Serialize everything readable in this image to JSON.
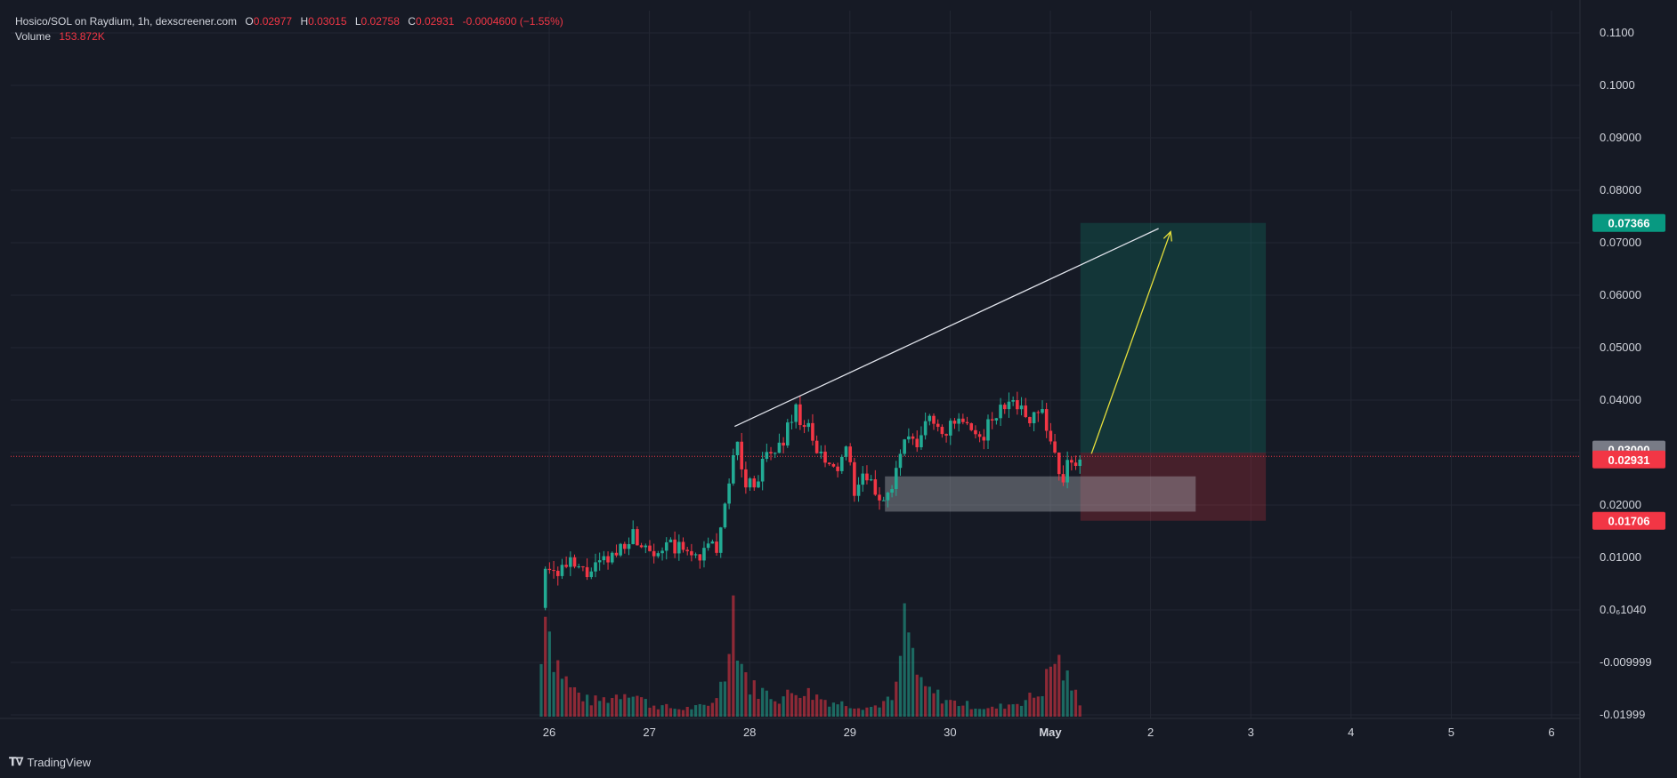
{
  "legend": {
    "symbol": "Hosico/SOL on Raydium, 1h, dexscreener.com",
    "o_label": "O",
    "o_value": "0.02977",
    "h_label": "H",
    "h_value": "0.03015",
    "l_label": "L",
    "l_value": "0.02758",
    "c_label": "C",
    "c_value": "0.02931",
    "change": "-0.0004600 (−1.55%)",
    "volume_label": "Volume",
    "volume_value": "153.872K"
  },
  "brand": {
    "name": "TradingView",
    "icon": "tradingview-logo-icon"
  },
  "colors": {
    "background": "#161a25",
    "grid": "#232733",
    "text": "#d1d4dc",
    "up": "#22ab94",
    "down": "#f23645",
    "target": "#089981",
    "stop": "#f23645",
    "entry_label": "#787b86",
    "zone": "#b2b5be",
    "arrow": "#e6df3b",
    "trendline": "#e0e3eb"
  },
  "chart_data": {
    "type": "candlestick",
    "timeframe": "1h",
    "x_ticks": [
      "26",
      "27",
      "28",
      "29",
      "30",
      "May",
      "2",
      "3",
      "4",
      "5",
      "6"
    ],
    "y_ticks": [
      "0.1100",
      "0.1000",
      "0.09000",
      "0.08000",
      "0.07000",
      "0.06000",
      "0.05000",
      "0.04000",
      "0.03000",
      "0.02000",
      "0.01000",
      "0.0₆1040",
      "-0.009999",
      "-0.01999"
    ],
    "y_range": [
      -0.0205,
      0.114
    ],
    "last_price": 0.02931,
    "price_labels": {
      "target": "0.07366",
      "entry": "0.03000",
      "last": "0.02931",
      "stop": "0.01706"
    },
    "position": {
      "entry": 0.03,
      "target": 0.07366,
      "stop": 0.01706,
      "start_day": 31.3,
      "end_day": 33.15
    },
    "demand_zone": {
      "top": 0.0255,
      "bottom": 0.0188,
      "start_day": 29.35,
      "end_day": 32.45
    },
    "trendline": {
      "from": [
        27.85,
        0.035
      ],
      "to": [
        32.08,
        0.0726
      ]
    },
    "projection_arrow": {
      "from": [
        31.41,
        0.0298
      ],
      "to": [
        32.2,
        0.072
      ]
    },
    "price_path": [
      [
        25.92,
        0.0005
      ],
      [
        25.94,
        0.01
      ],
      [
        26.05,
        0.0075
      ],
      [
        26.2,
        0.0085
      ],
      [
        26.35,
        0.007
      ],
      [
        26.5,
        0.0082
      ],
      [
        26.65,
        0.0105
      ],
      [
        26.8,
        0.0145
      ],
      [
        26.95,
        0.013
      ],
      [
        27.1,
        0.0115
      ],
      [
        27.25,
        0.012
      ],
      [
        27.4,
        0.0105
      ],
      [
        27.55,
        0.011
      ],
      [
        27.7,
        0.013
      ],
      [
        27.78,
        0.0215
      ],
      [
        27.85,
        0.0335
      ],
      [
        27.95,
        0.024
      ],
      [
        28.05,
        0.0245
      ],
      [
        28.15,
        0.0285
      ],
      [
        28.3,
        0.031
      ],
      [
        28.45,
        0.0385
      ],
      [
        28.55,
        0.0355
      ],
      [
        28.7,
        0.029
      ],
      [
        28.85,
        0.026
      ],
      [
        28.95,
        0.0305
      ],
      [
        29.05,
        0.023
      ],
      [
        29.15,
        0.025
      ],
      [
        29.3,
        0.0215
      ],
      [
        29.42,
        0.023
      ],
      [
        29.55,
        0.033
      ],
      [
        29.65,
        0.0305
      ],
      [
        29.8,
        0.037
      ],
      [
        29.95,
        0.034
      ],
      [
        30.1,
        0.036
      ],
      [
        30.25,
        0.032
      ],
      [
        30.4,
        0.0355
      ],
      [
        30.55,
        0.039
      ],
      [
        30.62,
        0.042
      ],
      [
        30.75,
        0.036
      ],
      [
        30.9,
        0.0395
      ],
      [
        31.0,
        0.0325
      ],
      [
        31.1,
        0.025
      ],
      [
        31.2,
        0.028
      ],
      [
        31.3,
        0.0293
      ]
    ],
    "volume_path": [
      [
        25.92,
        0.35
      ],
      [
        25.95,
        1.0
      ],
      [
        26.0,
        0.6
      ],
      [
        26.05,
        0.4
      ],
      [
        26.2,
        0.2
      ],
      [
        26.4,
        0.1
      ],
      [
        26.6,
        0.12
      ],
      [
        26.8,
        0.18
      ],
      [
        27.0,
        0.08
      ],
      [
        27.3,
        0.05
      ],
      [
        27.6,
        0.07
      ],
      [
        27.75,
        0.25
      ],
      [
        27.82,
        0.85
      ],
      [
        27.9,
        0.4
      ],
      [
        28.0,
        0.2
      ],
      [
        28.3,
        0.12
      ],
      [
        28.5,
        0.18
      ],
      [
        28.8,
        0.1
      ],
      [
        29.2,
        0.06
      ],
      [
        29.45,
        0.12
      ],
      [
        29.55,
        0.65
      ],
      [
        29.7,
        0.2
      ],
      [
        30.0,
        0.1
      ],
      [
        30.4,
        0.05
      ],
      [
        30.7,
        0.1
      ],
      [
        30.9,
        0.15
      ],
      [
        31.05,
        0.4
      ],
      [
        31.2,
        0.2
      ],
      [
        31.3,
        0.1
      ]
    ]
  }
}
